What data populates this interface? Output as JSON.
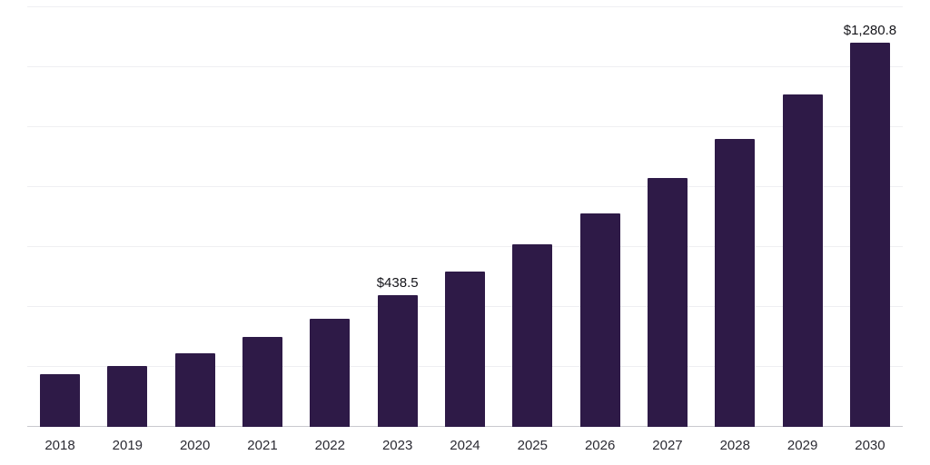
{
  "chart_data": {
    "type": "bar",
    "title": "",
    "xlabel": "",
    "ylabel": "",
    "categories": [
      "2018",
      "2019",
      "2020",
      "2021",
      "2022",
      "2023",
      "2024",
      "2025",
      "2026",
      "2027",
      "2028",
      "2029",
      "2030"
    ],
    "values": [
      175,
      202,
      245,
      299,
      362,
      438.5,
      519,
      608,
      713,
      830,
      961,
      1108,
      1280.8
    ],
    "data_labels": {
      "2023": "$438.5",
      "2030": "$1,280.8"
    },
    "bar_color": "#2e1a47",
    "ylim": [
      0,
      1400
    ],
    "gridline_step": 200,
    "grid": true,
    "legend": false
  }
}
